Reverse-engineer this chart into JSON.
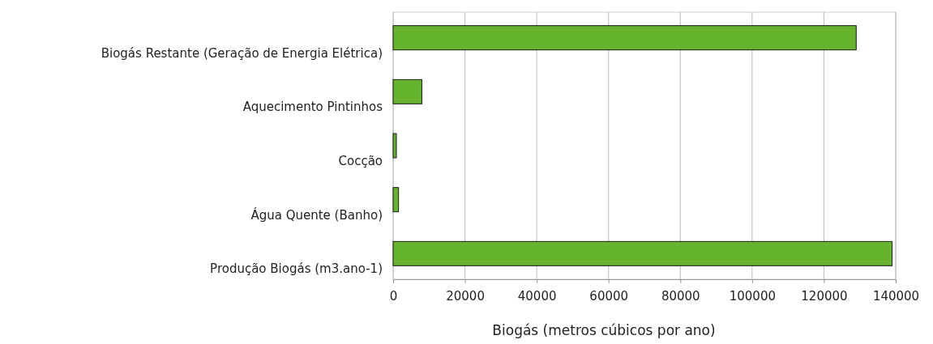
{
  "chart_data": {
    "type": "bar",
    "orientation": "horizontal",
    "xlabel": "Biogás (metros cúbicos por ano)",
    "categories": [
      "Biogás Restante (Geração de Energia Elétrica)",
      "Aquecimento Pintinhos",
      "Cocção",
      "Água Quente (Banho)",
      "Produção Biogás (m3.ano-1)"
    ],
    "values": [
      129000,
      8000,
      900,
      1500,
      139000
    ],
    "color": "#66b32e",
    "xlim": [
      0,
      140000
    ],
    "xticks": [
      0,
      20000,
      40000,
      60000,
      80000,
      100000,
      120000,
      140000
    ],
    "grid": "x"
  }
}
